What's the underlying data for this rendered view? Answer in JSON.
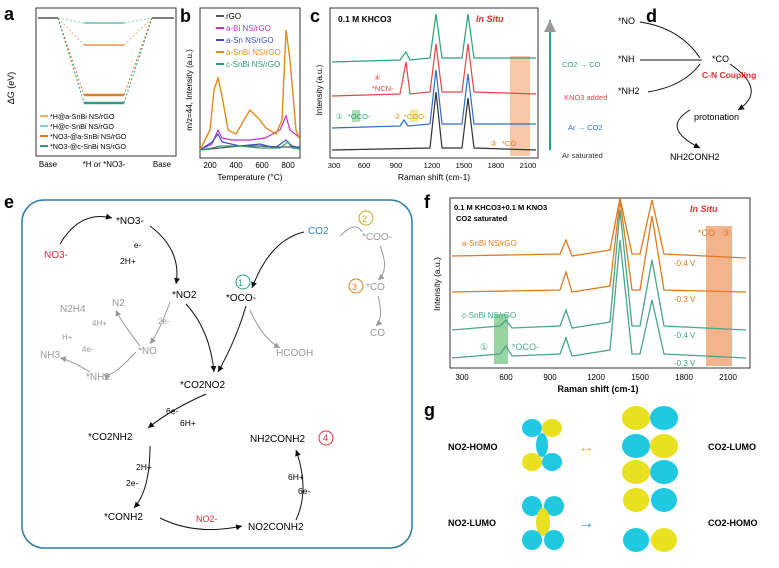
{
  "panels": {
    "a": {
      "letter": "a",
      "ylabel": "ΔG (eV)",
      "xticks": [
        "Base",
        "*H or *NO3-",
        "Base"
      ],
      "legend": [
        {
          "label": "*H@a-SnBi NS/rGO",
          "color": "#f2b070"
        },
        {
          "label": "*H@c-SnBi NS/rGO",
          "color": "#8ccfc1"
        },
        {
          "label": "*NO3-@a-SnBi NS/rGO",
          "color": "#e07b1e"
        },
        {
          "label": "*NO3-@c-SnBi NS/rGO",
          "color": "#2f9a88"
        }
      ]
    },
    "b": {
      "letter": "b",
      "ylabel": "m/z=44, Intensity (a.u.)",
      "xlabel": "Temperature (°C)",
      "xticks": [
        "200",
        "400",
        "600",
        "800"
      ],
      "legend": [
        {
          "label": "rGO",
          "color": "#555555"
        },
        {
          "label": "a-Bi NS/rGO",
          "color": "#c230c2"
        },
        {
          "label": "a-Sn NS/rGO",
          "color": "#3a4fc8"
        },
        {
          "label": "a-SnBi NS/rGO",
          "color": "#e08a1c"
        },
        {
          "label": "c-SnBi NS/rGO",
          "color": "#2f9a70"
        }
      ]
    },
    "c": {
      "letter": "c",
      "condition": "0.1 M KHCO3",
      "insitu": "In Situ",
      "ylabel": "Intensity (a.u.)",
      "xlabel": "Raman shift (cm-1)",
      "xticks": [
        "300",
        "600",
        "900",
        "1200",
        "1500",
        "1800",
        "2100"
      ],
      "traces": [
        {
          "label": "CO2 → CO",
          "color": "#2aa37a"
        },
        {
          "label": "KNO3 added",
          "color": "#e04848"
        },
        {
          "label": "Ar → CO2",
          "color": "#2f6fc8"
        },
        {
          "label": "Ar saturated",
          "color": "#333333"
        }
      ],
      "annotations": {
        "n4": "④",
        "nco": "*NCN-",
        "n1": "①",
        "oco": "*OCO-",
        "n2": "②",
        "coo": "*COO-",
        "n3": "③",
        "co": "*CO"
      }
    },
    "d": {
      "letter": "d",
      "species": [
        "*NO",
        "*NH",
        "*NH2",
        "*CO"
      ],
      "coupling": "C-N Coupling",
      "protonation": "protonation",
      "product": "NH2CONH2"
    },
    "e": {
      "letter": "e",
      "labels": {
        "no3": "NO3-",
        "sno3": "*NO3-",
        "eminus": "e-",
        "twoh": "2H+",
        "sno2": "*NO2",
        "co2": "CO2",
        "c1": "1",
        "soco": "*OCO-",
        "c2": "2",
        "scoo": "*COO-",
        "c3": "3",
        "sco": "*CO",
        "co": "CO",
        "hcooh": "HCOOH",
        "n2h4": "N2H4",
        "n2": "N2",
        "nh3": "NH3",
        "snh2": "*NH2",
        "sno": "*NO",
        "hplus": "H+",
        "fourh": "4H+",
        "foure": "4e-",
        "twoe": "2e-",
        "sco2no2": "*CO2NO2",
        "sixe": "6e-",
        "sixh": "6H+",
        "sco2nh2": "*CO2NH2",
        "urea": "NH2CONH2",
        "c4": "4",
        "sconh2": "*CONH2",
        "no2m": "NO2-",
        "no2conh2": "NO2CONH2"
      }
    },
    "f": {
      "letter": "f",
      "condition1": "0.1 M KHCO3+0.1 M KNO3",
      "condition2": "CO2 saturated",
      "insitu": "In Situ",
      "ylabel": "Intensity (a.u.)",
      "xlabel": "Raman shift (cm-1)",
      "xticks": [
        "300",
        "600",
        "900",
        "1200",
        "1500",
        "1800",
        "2100"
      ],
      "sample_a": "a-SnBi NS/rGO",
      "sample_c": "c-SnBi NS/rGO",
      "potentials": [
        "-0.4 V",
        "-0.3 V",
        "-0.4 V",
        "-0.3 V"
      ],
      "co_label": "*CO",
      "co_num": "③",
      "oco_label": "*OCO-",
      "oco_num": "①",
      "colors": {
        "a": "#e07b1e",
        "c": "#4aa58a",
        "co_band": "#f0a070",
        "oco_band": "#7cc98a"
      }
    },
    "g": {
      "letter": "g",
      "rows": [
        {
          "left": "NO2-HOMO",
          "right": "CO2-LUMO",
          "arrow": "↔"
        },
        {
          "left": "NO2-LUMO",
          "right": "CO2-HOMO",
          "arrow": "→"
        }
      ],
      "colors": {
        "yellow": "#e8e020",
        "cyan": "#20c8e0"
      }
    }
  }
}
